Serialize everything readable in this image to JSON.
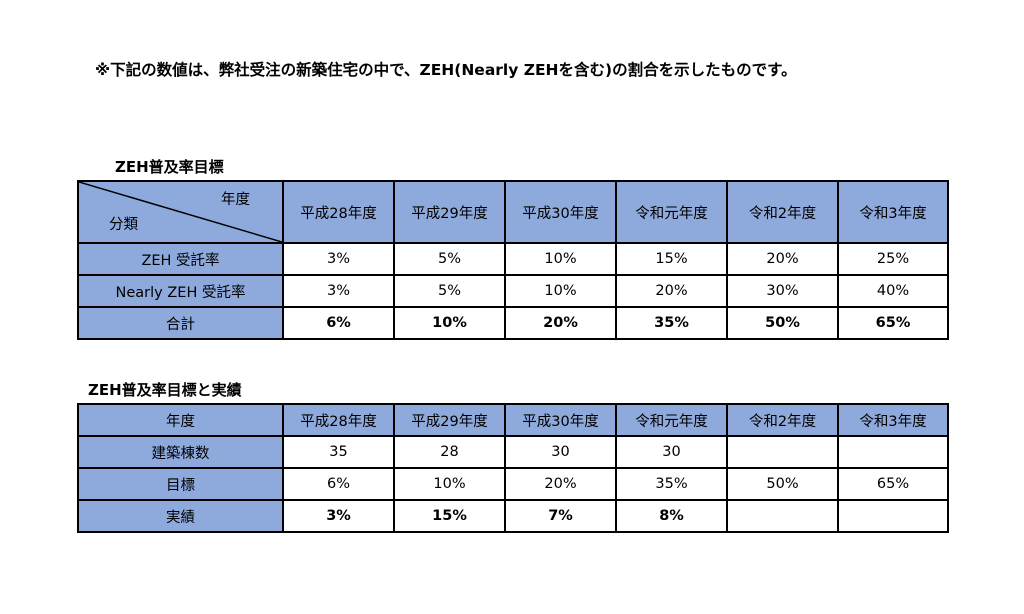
{
  "note": "※下記の数値は、弊社受注の新築住宅の中で、ZEH(Nearly ZEHを含む)の割合を示したものです。",
  "colors": {
    "header_bg": "#8ea9db",
    "border": "#000000"
  },
  "table1": {
    "title": "ZEH普及率目標",
    "corner_top": "年度",
    "corner_bottom": "分類",
    "years": [
      "平成28年度",
      "平成29年度",
      "平成30年度",
      "令和元年度",
      "令和2年度",
      "令和3年度"
    ],
    "rows": [
      {
        "label": "ZEH 受託率",
        "values": [
          "3%",
          "5%",
          "10%",
          "15%",
          "20%",
          "25%"
        ]
      },
      {
        "label": "Nearly ZEH 受託率",
        "values": [
          "3%",
          "5%",
          "10%",
          "20%",
          "30%",
          "40%"
        ]
      },
      {
        "label": "合計",
        "values": [
          "6%",
          "10%",
          "20%",
          "35%",
          "50%",
          "65%"
        ]
      }
    ]
  },
  "table2": {
    "title": "ZEH普及率目標と実績",
    "header_label": "年度",
    "years": [
      "平成28年度",
      "平成29年度",
      "平成30年度",
      "令和元年度",
      "令和2年度",
      "令和3年度"
    ],
    "rows": [
      {
        "label": "建築棟数",
        "values": [
          "35",
          "28",
          "30",
          "30",
          "",
          ""
        ]
      },
      {
        "label": "目標",
        "values": [
          "6%",
          "10%",
          "20%",
          "35%",
          "50%",
          "65%"
        ]
      },
      {
        "label": "実績",
        "values": [
          "3%",
          "15%",
          "7%",
          "8%",
          "",
          ""
        ]
      }
    ]
  }
}
